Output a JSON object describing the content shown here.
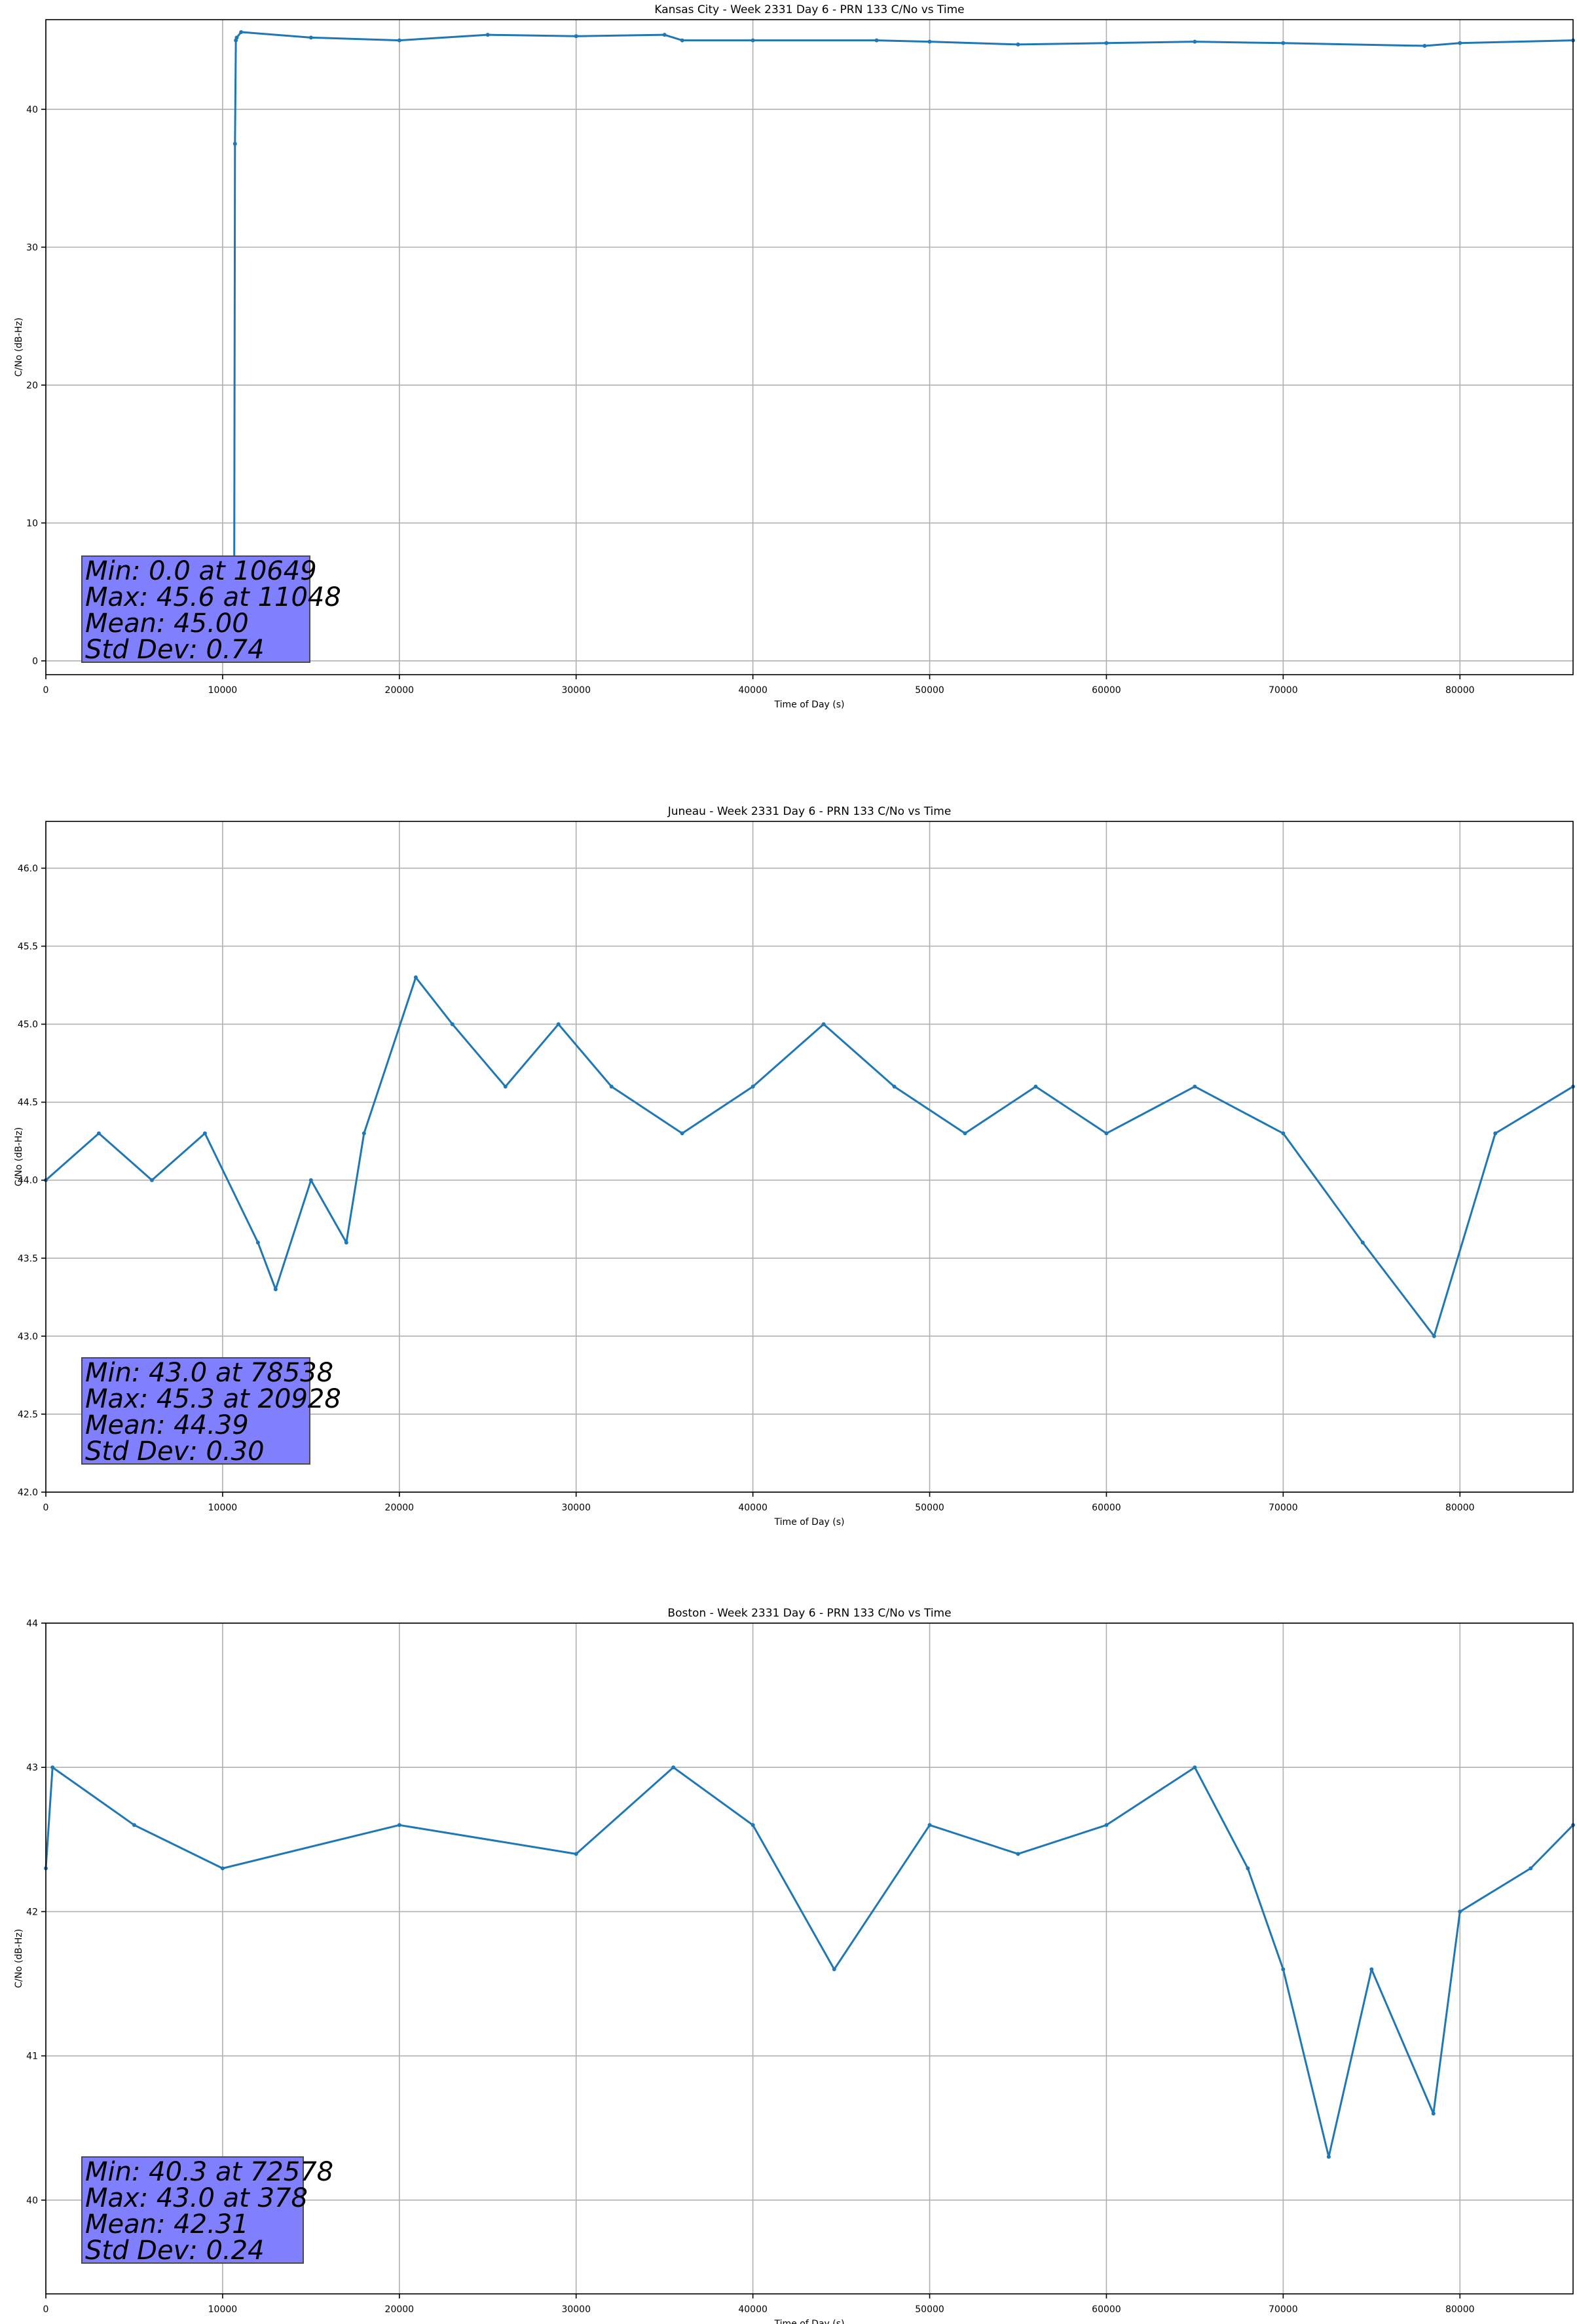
{
  "chart_data": [
    {
      "type": "line",
      "title": "Kansas City - Week 2331 Day 6 - PRN 133 C/No vs Time",
      "xlabel": "Time of Day (s)",
      "ylabel": "C/No (dB-Hz)",
      "xlim": [
        0,
        86400
      ],
      "ylim": [
        -1,
        46.5
      ],
      "xticks": [
        0,
        10000,
        20000,
        30000,
        40000,
        50000,
        60000,
        70000,
        80000
      ],
      "yticks": [
        0,
        10,
        20,
        30,
        40
      ],
      "ytick_labels": [
        "0",
        "10",
        "20",
        "30",
        "40"
      ],
      "grid": true,
      "color": "#1f77b4",
      "series": [
        {
          "x": [
            0,
            10500,
            10649,
            10700,
            10750,
            10800,
            11048,
            15000,
            20000,
            25000,
            30000,
            35000,
            36000,
            40000,
            47000,
            50000,
            55000,
            60000,
            65000,
            70000,
            78000,
            80000,
            86400
          ],
          "y": [
            null,
            null,
            0.0,
            37.5,
            45.0,
            45.2,
            45.6,
            45.2,
            45.0,
            45.4,
            45.3,
            45.4,
            45.0,
            45.0,
            45.0,
            44.9,
            44.7,
            44.8,
            44.9,
            44.8,
            44.6,
            44.8,
            45.0
          ]
        }
      ],
      "stats": {
        "min_label": "Min: 0.0 at 10649",
        "max_label": "Max: 45.6 at 11048",
        "mean_label": "Mean: 45.00",
        "std_label": "Std Dev: 0.74"
      }
    },
    {
      "type": "line",
      "title": "Juneau - Week 2331 Day 6 - PRN 133 C/No vs Time",
      "xlabel": "Time of Day (s)",
      "ylabel": "C/No (dB-Hz)",
      "xlim": [
        0,
        86400
      ],
      "ylim": [
        42.0,
        46.3
      ],
      "xticks": [
        0,
        10000,
        20000,
        30000,
        40000,
        50000,
        60000,
        70000,
        80000
      ],
      "yticks": [
        42.0,
        42.5,
        43.0,
        43.5,
        44.0,
        44.5,
        45.0,
        45.5,
        46.0
      ],
      "ytick_labels": [
        "42.0",
        "42.5",
        "43.0",
        "43.5",
        "44.0",
        "44.5",
        "45.0",
        "45.5",
        "46.0"
      ],
      "grid": true,
      "color": "#1f77b4",
      "series": [
        {
          "x": [
            0,
            3000,
            6000,
            9000,
            12000,
            13000,
            15000,
            17000,
            18000,
            20928,
            23000,
            26000,
            29000,
            32000,
            36000,
            40000,
            44000,
            48000,
            52000,
            56000,
            60000,
            65000,
            70000,
            74500,
            78538,
            82000,
            86400
          ],
          "y": [
            44.0,
            44.3,
            44.0,
            44.3,
            43.6,
            43.3,
            44.0,
            43.6,
            44.3,
            45.3,
            45.0,
            44.6,
            45.0,
            44.6,
            44.3,
            44.6,
            45.0,
            44.6,
            44.3,
            44.6,
            44.3,
            44.6,
            44.3,
            43.6,
            43.0,
            44.3,
            44.6
          ]
        }
      ],
      "stats": {
        "min_label": "Min: 43.0 at 78538",
        "max_label": "Max: 45.3 at 20928",
        "mean_label": "Mean: 44.39",
        "std_label": "Std Dev: 0.30"
      }
    },
    {
      "type": "line",
      "title": "Boston - Week 2331 Day 6 - PRN 133 C/No vs Time",
      "xlabel": "Time of Day (s)",
      "ylabel": "C/No (dB-Hz)",
      "xlim": [
        0,
        86400
      ],
      "ylim": [
        39.35,
        44.0
      ],
      "xticks": [
        0,
        10000,
        20000,
        30000,
        40000,
        50000,
        60000,
        70000,
        80000
      ],
      "yticks": [
        40,
        41,
        42,
        43,
        44
      ],
      "ytick_labels": [
        "40",
        "41",
        "42",
        "43",
        "44"
      ],
      "grid": true,
      "color": "#1f77b4",
      "series": [
        {
          "x": [
            0,
            378,
            5000,
            10000,
            20000,
            30000,
            35500,
            40000,
            44600,
            50000,
            55000,
            60000,
            65000,
            68000,
            70000,
            72578,
            75000,
            78500,
            80000,
            84000,
            86400
          ],
          "y": [
            42.3,
            43.0,
            42.6,
            42.3,
            42.6,
            42.4,
            43.0,
            42.6,
            41.6,
            42.6,
            42.4,
            42.6,
            43.0,
            42.3,
            41.6,
            40.3,
            41.6,
            40.6,
            42.0,
            42.3,
            42.6
          ]
        }
      ],
      "stats": {
        "min_label": "Min: 40.3 at 72578",
        "max_label": "Max: 43.0 at 378",
        "mean_label": "Mean: 42.31",
        "std_label": "Std Dev: 0.24"
      }
    }
  ]
}
